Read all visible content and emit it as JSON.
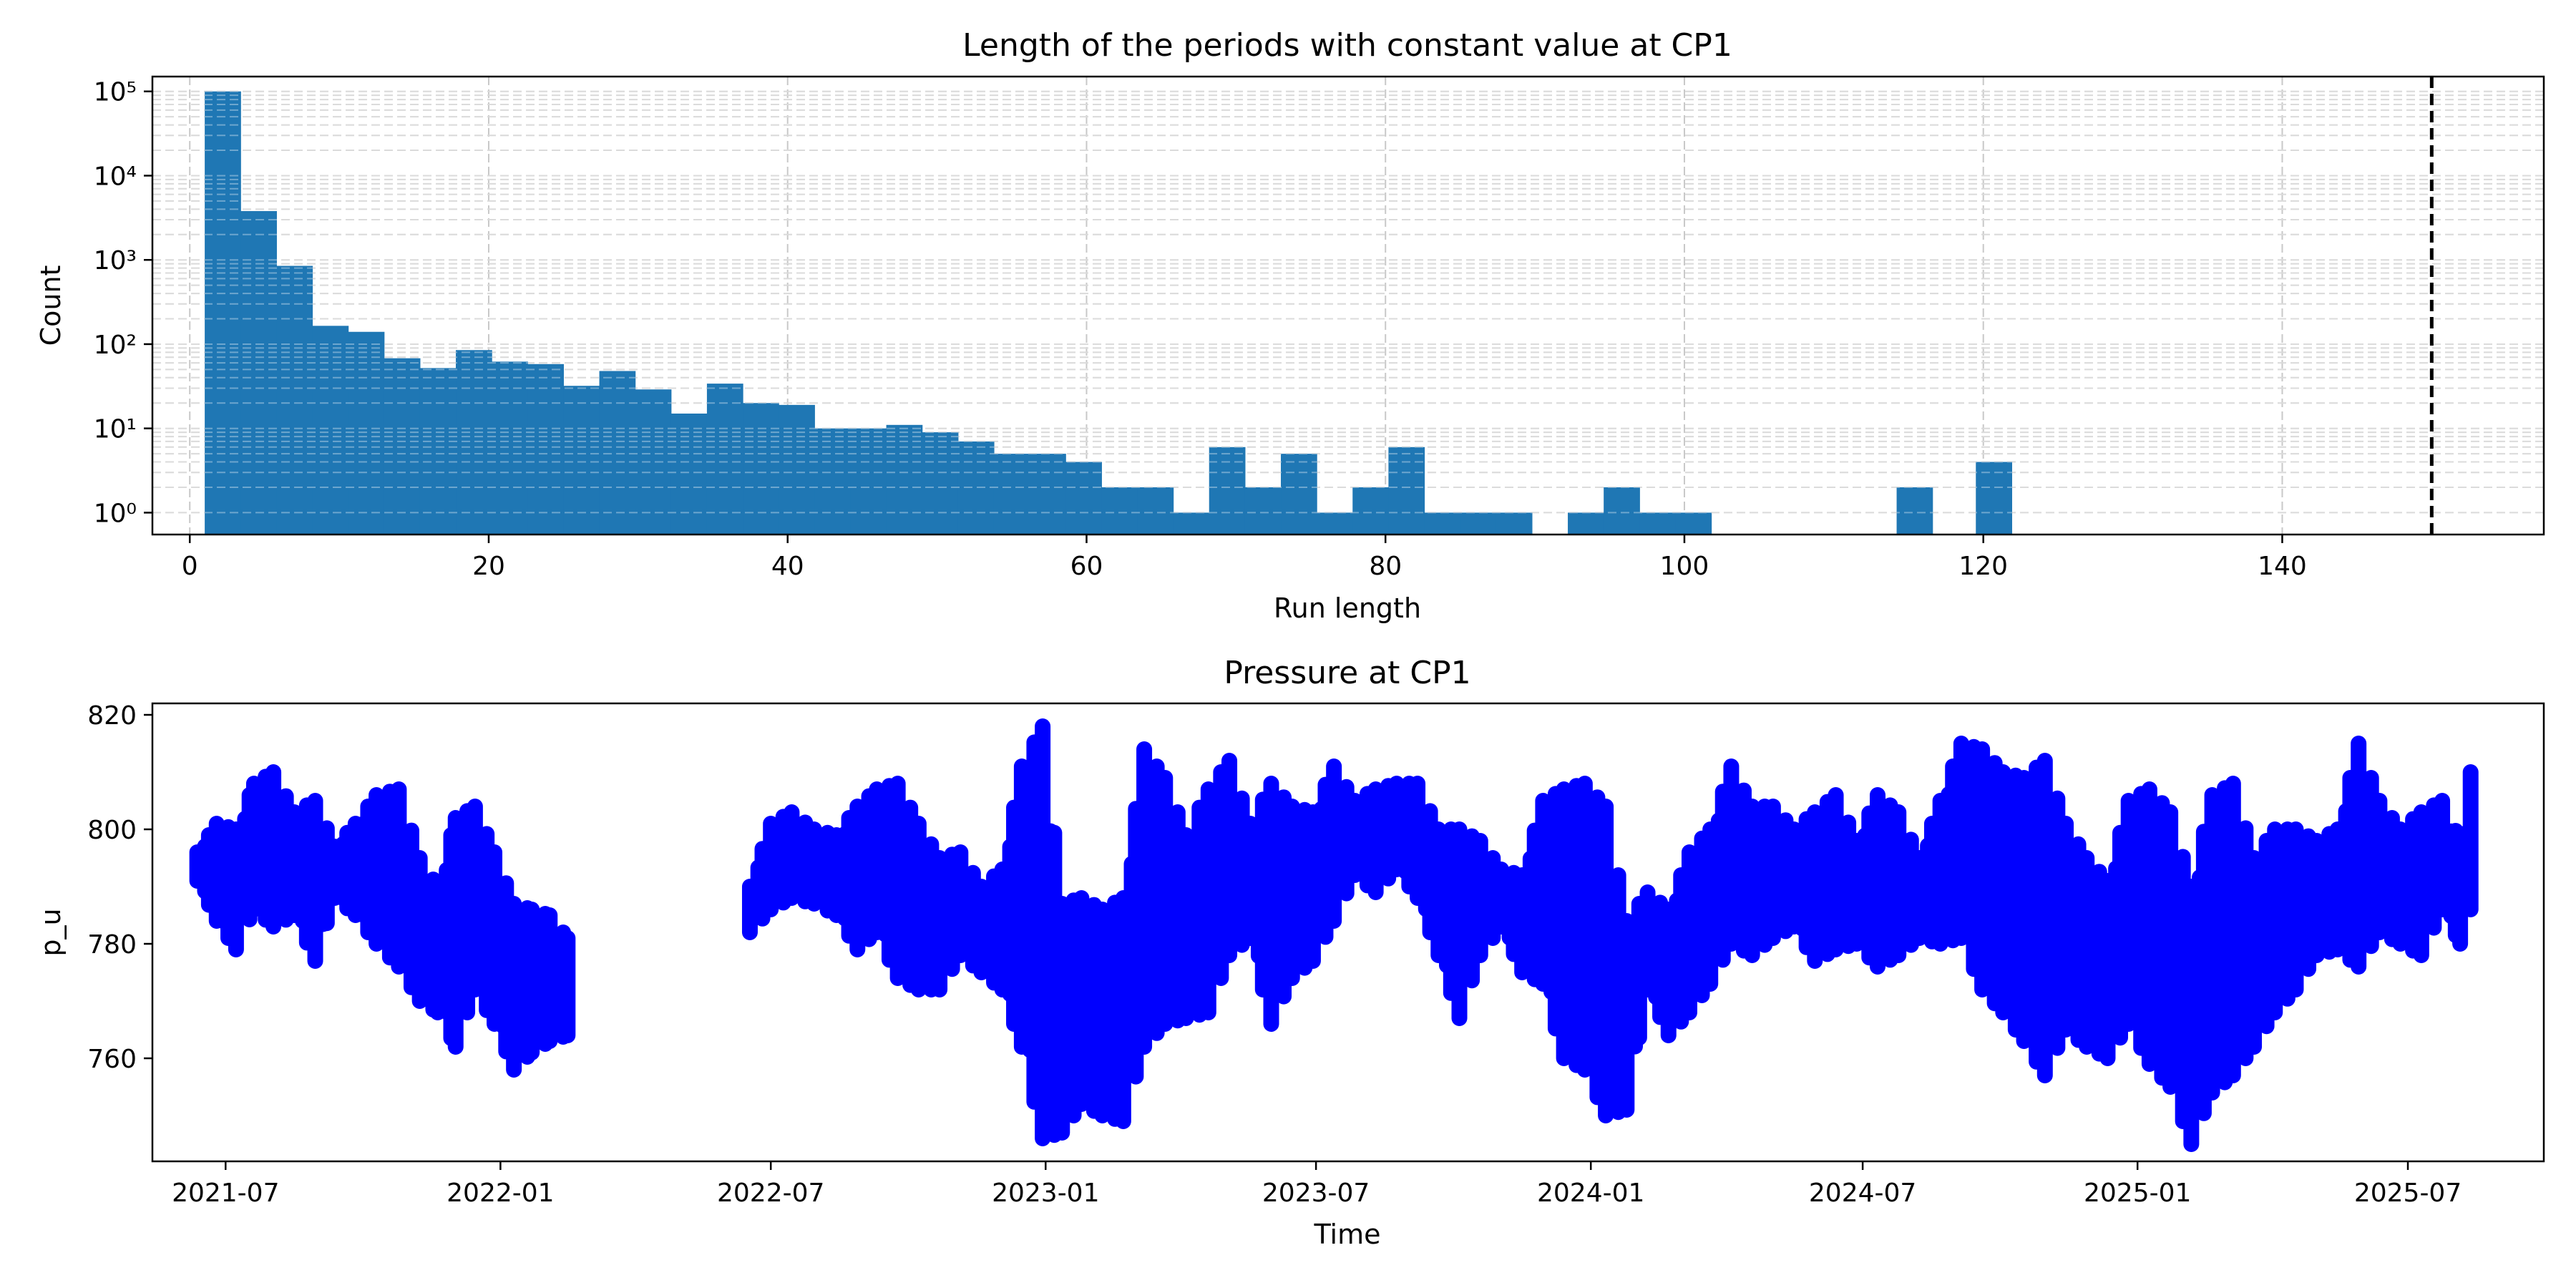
{
  "chart_data": [
    {
      "type": "bar",
      "title": "Length of the periods with constant value at CP1",
      "xlabel": "Run length",
      "ylabel": "Count",
      "yscale": "log",
      "xlim": [
        -2.5,
        157.5
      ],
      "ylim": [
        0.55,
        150000
      ],
      "xticks": [
        "0",
        "20",
        "40",
        "60",
        "80",
        "100",
        "120",
        "140"
      ],
      "yticks": [
        "10⁰",
        "10¹",
        "10²",
        "10³",
        "10⁴",
        "10⁵"
      ],
      "bin_width": 2.4,
      "bins": [
        {
          "x": 1.0,
          "count": 100000
        },
        {
          "x": 3.4,
          "count": 3800
        },
        {
          "x": 5.8,
          "count": 850
        },
        {
          "x": 8.2,
          "count": 165
        },
        {
          "x": 10.6,
          "count": 140
        },
        {
          "x": 13.0,
          "count": 68
        },
        {
          "x": 15.4,
          "count": 52
        },
        {
          "x": 17.8,
          "count": 85
        },
        {
          "x": 20.2,
          "count": 62
        },
        {
          "x": 22.6,
          "count": 58
        },
        {
          "x": 25.0,
          "count": 32
        },
        {
          "x": 27.4,
          "count": 48
        },
        {
          "x": 29.8,
          "count": 29
        },
        {
          "x": 32.2,
          "count": 15
        },
        {
          "x": 34.6,
          "count": 34
        },
        {
          "x": 37.0,
          "count": 20
        },
        {
          "x": 39.4,
          "count": 19
        },
        {
          "x": 41.8,
          "count": 10
        },
        {
          "x": 44.2,
          "count": 10
        },
        {
          "x": 46.6,
          "count": 11
        },
        {
          "x": 49.0,
          "count": 9
        },
        {
          "x": 51.4,
          "count": 7
        },
        {
          "x": 53.8,
          "count": 5
        },
        {
          "x": 56.2,
          "count": 5
        },
        {
          "x": 58.6,
          "count": 4
        },
        {
          "x": 61.0,
          "count": 2
        },
        {
          "x": 63.4,
          "count": 2
        },
        {
          "x": 65.8,
          "count": 1
        },
        {
          "x": 68.2,
          "count": 6
        },
        {
          "x": 70.6,
          "count": 2
        },
        {
          "x": 73.0,
          "count": 5
        },
        {
          "x": 75.4,
          "count": 1
        },
        {
          "x": 77.8,
          "count": 2
        },
        {
          "x": 80.2,
          "count": 6
        },
        {
          "x": 82.6,
          "count": 1
        },
        {
          "x": 85.0,
          "count": 1
        },
        {
          "x": 87.4,
          "count": 1
        },
        {
          "x": 92.2,
          "count": 1
        },
        {
          "x": 94.6,
          "count": 2
        },
        {
          "x": 97.0,
          "count": 1
        },
        {
          "x": 99.4,
          "count": 1
        },
        {
          "x": 114.2,
          "count": 2
        },
        {
          "x": 119.5,
          "count": 4
        }
      ],
      "vline": {
        "x": 150,
        "style": "dashed",
        "color": "#000000"
      },
      "bar_color": "#1f77b4",
      "grid": true
    },
    {
      "type": "scatter",
      "title": "Pressure at CP1",
      "xlabel": "Time",
      "ylabel": "p_u",
      "ylim": [
        742,
        822
      ],
      "xlim": [
        "2021-05-13",
        "2025-09-30"
      ],
      "xticks": [
        "2021-07",
        "2022-01",
        "2022-07",
        "2023-01",
        "2023-07",
        "2024-01",
        "2024-07",
        "2025-01",
        "2025-07"
      ],
      "xtick_dates": [
        "2021-07-01",
        "2022-01-01",
        "2022-07-01",
        "2023-01-01",
        "2023-07-01",
        "2024-01-01",
        "2024-07-01",
        "2025-01-01",
        "2025-07-01"
      ],
      "yticks": [
        "760",
        "780",
        "800",
        "820"
      ],
      "marker_color": "#0000ff",
      "series": [
        {
          "segments": [
            {
              "x": [
                "2021-06-12",
                "2021-06-25",
                "2021-07-08",
                "2021-07-20",
                "2021-08-02",
                "2021-08-16",
                "2021-08-30",
                "2021-09-12",
                "2021-09-26",
                "2021-10-10",
                "2021-10-25",
                "2021-11-08",
                "2021-11-20",
                "2021-12-02",
                "2021-12-15",
                "2021-12-28",
                "2022-01-10",
                "2022-01-22",
                "2022-02-03",
                "2022-02-15"
              ],
              "min": [
                791,
                784,
                779,
                786,
                783,
                785,
                777,
                788,
                785,
                780,
                776,
                770,
                768,
                762,
                772,
                766,
                758,
                761,
                763,
                764
              ],
              "max": [
                796,
                801,
                800,
                808,
                810,
                803,
                805,
                797,
                801,
                806,
                807,
                795,
                790,
                802,
                804,
                796,
                787,
                786,
                785,
                781
              ]
            },
            {
              "x": [
                "2022-06-17",
                "2022-07-01",
                "2022-07-15",
                "2022-07-30",
                "2022-08-14",
                "2022-08-28",
                "2022-09-10",
                "2022-09-24",
                "2022-10-08",
                "2022-10-22",
                "2022-11-05",
                "2022-11-19",
                "2022-12-03",
                "2022-12-16",
                "2022-12-30",
                "2023-01-12",
                "2023-01-25",
                "2023-02-08",
                "2023-02-22",
                "2023-03-08",
                "2023-03-22",
                "2023-04-05",
                "2023-04-20",
                "2023-05-04",
                "2023-05-18",
                "2023-06-01",
                "2023-06-15",
                "2023-06-29",
                "2023-07-13",
                "2023-07-27",
                "2023-08-10",
                "2023-08-24",
                "2023-09-07",
                "2023-09-21",
                "2023-10-05",
                "2023-10-19",
                "2023-11-02",
                "2023-11-16",
                "2023-11-30",
                "2023-12-14",
                "2023-12-28",
                "2024-01-11",
                "2024-01-25",
                "2024-02-08",
                "2024-02-22",
                "2024-03-07",
                "2024-03-21",
                "2024-04-04",
                "2024-04-18",
                "2024-05-02",
                "2024-05-16",
                "2024-05-30",
                "2024-06-13",
                "2024-06-27",
                "2024-07-11",
                "2024-07-25",
                "2024-08-08",
                "2024-08-22",
                "2024-09-05",
                "2024-09-19",
                "2024-10-03",
                "2024-10-17",
                "2024-10-31",
                "2024-11-14",
                "2024-11-28",
                "2024-12-12",
                "2024-12-26",
                "2025-01-09",
                "2025-01-23",
                "2025-02-06",
                "2025-02-20",
                "2025-03-06",
                "2025-03-20",
                "2025-04-03",
                "2025-04-17",
                "2025-05-01",
                "2025-05-15",
                "2025-05-29",
                "2025-06-12",
                "2025-06-26",
                "2025-07-10",
                "2025-07-24",
                "2025-08-05",
                "2025-08-12"
              ],
              "min": [
                782,
                786,
                788,
                787,
                785,
                779,
                782,
                774,
                772,
                772,
                778,
                775,
                772,
                762,
                746,
                747,
                752,
                750,
                749,
                762,
                766,
                767,
                768,
                778,
                781,
                766,
                774,
                777,
                784,
                792,
                789,
                793,
                788,
                778,
                767,
                778,
                783,
                775,
                773,
                760,
                758,
                750,
                751,
                772,
                764,
                768,
                773,
                780,
                778,
                781,
                783,
                777,
                779,
                780,
                776,
                778,
                781,
                780,
                781,
                772,
                768,
                763,
                757,
                765,
                762,
                760,
                766,
                759,
                755,
                745,
                754,
                757,
                762,
                768,
                772,
                778,
                779,
                776,
                782,
                780,
                778,
                786,
                780,
                786
              ],
              "max": [
                790,
                801,
                803,
                800,
                799,
                804,
                807,
                808,
                801,
                795,
                796,
                790,
                793,
                811,
                818,
                787,
                788,
                786,
                788,
                814,
                809,
                799,
                807,
                812,
                801,
                808,
                804,
                803,
                811,
                805,
                807,
                808,
                808,
                800,
                800,
                798,
                793,
                792,
                805,
                807,
                808,
                804,
                784,
                789,
                786,
                796,
                800,
                811,
                804,
                804,
                800,
                803,
                806,
                798,
                806,
                803,
                795,
                805,
                815,
                814,
                810,
                809,
                812,
                801,
                795,
                791,
                805,
                807,
                803,
                790,
                806,
                808,
                795,
                800,
                800,
                798,
                800,
                815,
                805,
                800,
                803,
                805,
                798,
                810
              ]
            }
          ]
        }
      ]
    }
  ]
}
